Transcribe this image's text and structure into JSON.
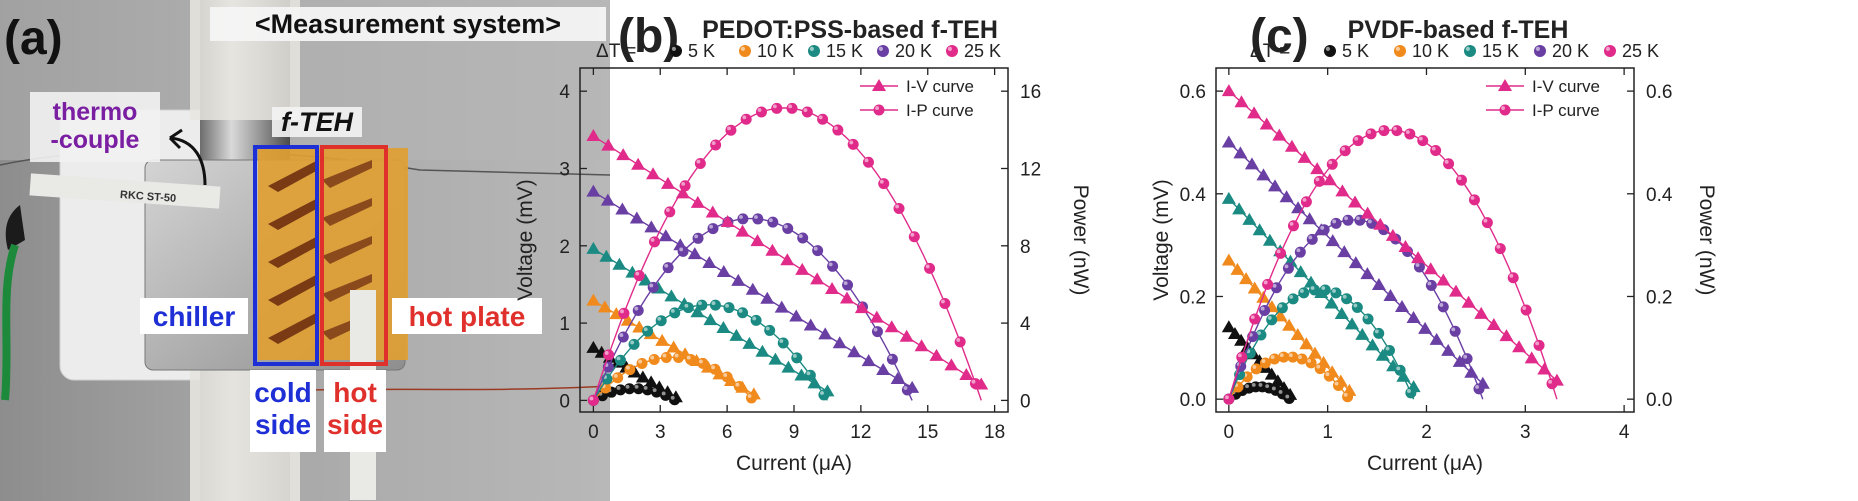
{
  "photo": {
    "panel_label": "(a)",
    "title": "<Measurement system>",
    "thermocouple": "thermo\n-couple",
    "fteh": "f-TEH",
    "chiller": "chiller",
    "hot_plate": "hot plate",
    "cold_side": "cold\nside",
    "hot_side": "hot\nside",
    "tape_text": "RKC  ST-50",
    "colors": {
      "cold": "#1f2fd6",
      "hot": "#e0302c",
      "purple": "#7a1fa2"
    }
  },
  "legend_prefix": "ΔT =",
  "series_colors": [
    "#111111",
    "#f08a1d",
    "#1b8a82",
    "#6a3fa4",
    "#e02b8a"
  ],
  "chart_data": [
    {
      "panel_label": "(b)",
      "title": "PEDOT:PSS-based f-TEH",
      "type": "line",
      "xlabel": "Current (μA)",
      "ylabel": "Voltage (mV)",
      "y2label": "Power (nW)",
      "xlim": [
        -0.6,
        18.6
      ],
      "ylim": [
        -0.15,
        4.3
      ],
      "y2lim": [
        -0.6,
        17.2
      ],
      "xticks": [
        "0",
        "3",
        "6",
        "9",
        "12",
        "15",
        "18"
      ],
      "yticks": [
        "0",
        "1",
        "2",
        "3",
        "4"
      ],
      "y2ticks": [
        "0",
        "4",
        "8",
        "12",
        "16"
      ],
      "curve_legend": [
        "I-V curve",
        "I-P curve"
      ],
      "series": [
        {
          "name": "5 K",
          "isc": 3.7,
          "voc": 0.68,
          "pmax": 0.63
        },
        {
          "name": "10 K",
          "isc": 7.2,
          "voc": 1.29,
          "pmax": 2.3
        },
        {
          "name": "15 K",
          "isc": 10.5,
          "voc": 1.96,
          "pmax": 5.1
        },
        {
          "name": "20 K",
          "isc": 14.3,
          "voc": 2.7,
          "pmax": 9.7
        },
        {
          "name": "25 K",
          "isc": 17.4,
          "voc": 3.42,
          "pmax": 15.6
        }
      ]
    },
    {
      "panel_label": "(c)",
      "title": "PVDF-based f-TEH",
      "type": "line",
      "xlabel": "Current (μA)",
      "ylabel": "Voltage (mV)",
      "y2label": "Power (nW)",
      "xlim": [
        -0.13,
        4.1
      ],
      "ylim": [
        -0.025,
        0.645
      ],
      "y2lim": [
        -0.025,
        0.645
      ],
      "xticks": [
        "0",
        "1",
        "2",
        "3",
        "4"
      ],
      "yticks": [
        "0.0",
        "0.2",
        "0.4",
        "0.6"
      ],
      "y2ticks": [
        "0.0",
        "0.2",
        "0.4",
        "0.6"
      ],
      "curve_legend": [
        "I-V curve",
        "I-P curve"
      ],
      "series": [
        {
          "name": "5 K",
          "isc": 0.62,
          "voc": 0.14,
          "pmax": 0.025
        },
        {
          "name": "10 K",
          "isc": 1.22,
          "voc": 0.27,
          "pmax": 0.085
        },
        {
          "name": "15 K",
          "isc": 1.87,
          "voc": 0.39,
          "pmax": 0.22
        },
        {
          "name": "20 K",
          "isc": 2.57,
          "voc": 0.5,
          "pmax": 0.36
        },
        {
          "name": "25 K",
          "isc": 3.32,
          "voc": 0.6,
          "pmax": 0.54
        }
      ]
    }
  ]
}
